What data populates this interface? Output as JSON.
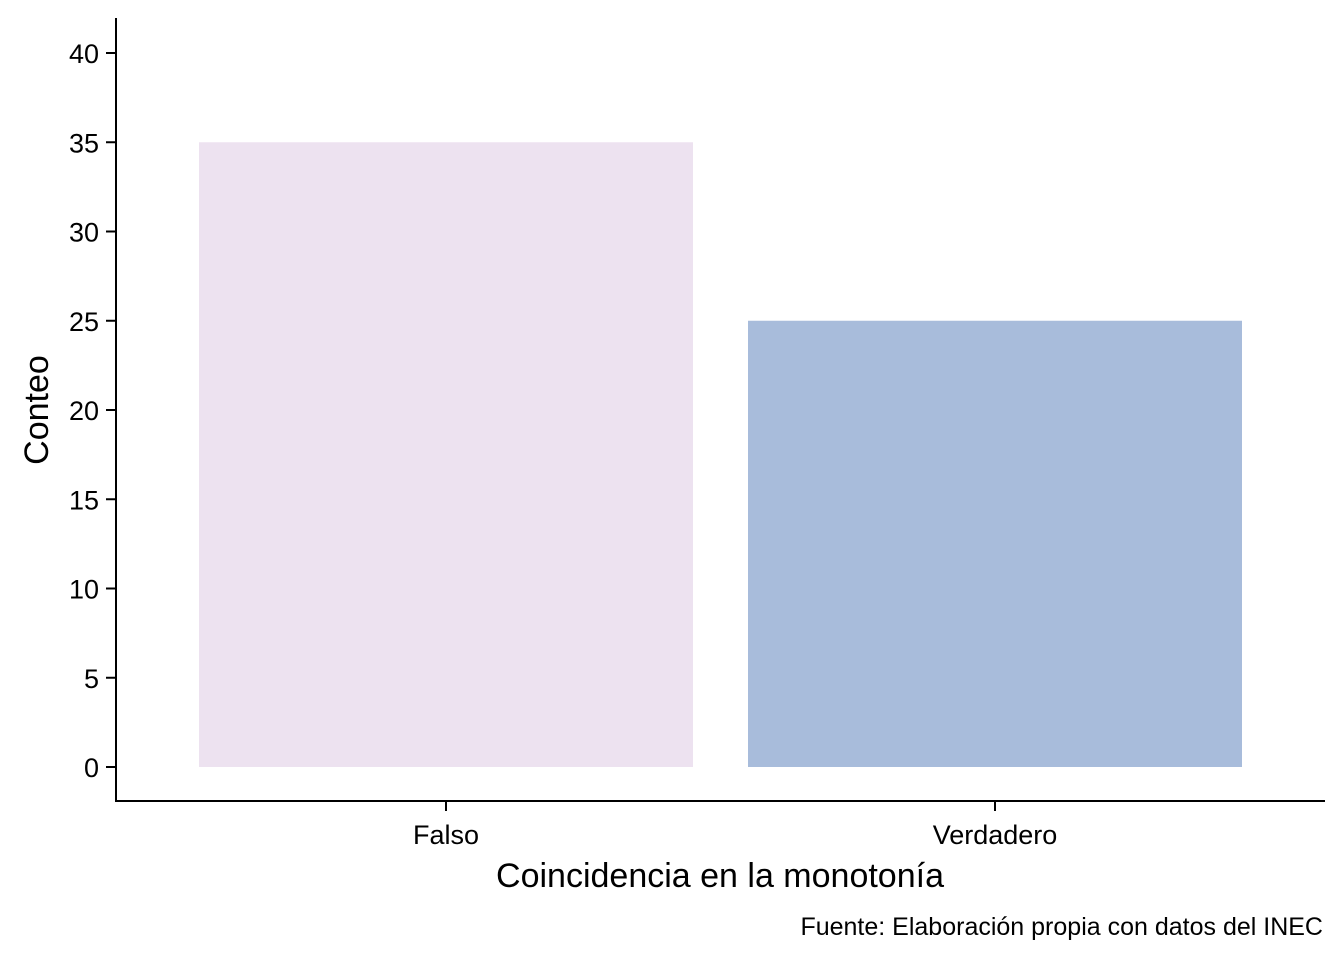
{
  "chart_data": {
    "type": "bar",
    "categories": [
      "Falso",
      "Verdadero"
    ],
    "values": [
      35,
      25
    ],
    "colors": [
      "#ede2f0",
      "#a8bcdb"
    ],
    "title": "",
    "xlabel": "Coincidencia en la monotonía",
    "ylabel": "Conteo",
    "ylim": [
      -2,
      42
    ],
    "yticks": [
      0,
      5,
      10,
      15,
      20,
      25,
      30,
      35,
      40
    ],
    "caption": "Fuente: Elaboración propia con datos del INEC",
    "grid": false,
    "legend": "none"
  }
}
